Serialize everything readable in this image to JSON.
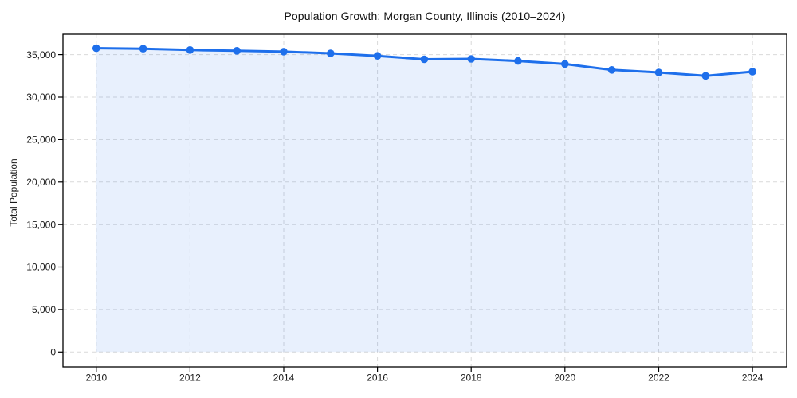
{
  "chart_data": {
    "type": "area",
    "title": "Population Growth: Morgan County, Illinois (2010–2024)",
    "ylabel": "Total Population",
    "xlabel": "",
    "x": [
      2010,
      2011,
      2012,
      2013,
      2014,
      2015,
      2016,
      2017,
      2018,
      2019,
      2020,
      2021,
      2022,
      2023,
      2024
    ],
    "values": [
      35750,
      35700,
      35550,
      35450,
      35350,
      35150,
      34850,
      34450,
      34500,
      34250,
      33900,
      33200,
      32900,
      32500,
      33000
    ],
    "series_name": "Total Population",
    "xticks": [
      {
        "value": 2010,
        "label": "2010"
      },
      {
        "value": 2012,
        "label": "2012"
      },
      {
        "value": 2014,
        "label": "2014"
      },
      {
        "value": 2016,
        "label": "2016"
      },
      {
        "value": 2018,
        "label": "2018"
      },
      {
        "value": 2020,
        "label": "2020"
      },
      {
        "value": 2022,
        "label": "2022"
      },
      {
        "value": 2024,
        "label": "2024"
      }
    ],
    "yticks": [
      {
        "value": 0,
        "label": "0"
      },
      {
        "value": 5000,
        "label": "5,000"
      },
      {
        "value": 10000,
        "label": "10,000"
      },
      {
        "value": 15000,
        "label": "15,000"
      },
      {
        "value": 20000,
        "label": "20,000"
      },
      {
        "value": 25000,
        "label": "25,000"
      },
      {
        "value": 30000,
        "label": "30,000"
      },
      {
        "value": 35000,
        "label": "35,000"
      }
    ],
    "xlim": [
      2009.29,
      2024.73
    ],
    "ylim": [
      -1750,
      37400
    ],
    "grid": true,
    "legend": false,
    "markers": true,
    "area_fill": true,
    "colors": {
      "line": "#1e6feb",
      "fill": "rgba(30, 111, 235, 0.10)",
      "grid": "#d9d9d9",
      "axis": "#000000",
      "text": "#1a1a1a",
      "background": "#ffffff"
    }
  }
}
